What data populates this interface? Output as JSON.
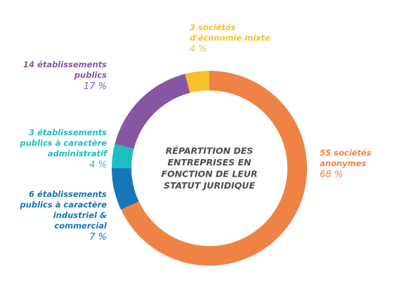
{
  "chart_data": {
    "type": "pie",
    "subtype": "donut",
    "title": "RÉPARTITION DES ENTREPRISES EN FONCTION DE LEUR STATUT JURIDIQUE",
    "title_lines": [
      "RÉPARTITION DES",
      "ENTREPRISES EN",
      "FONCTION DE LEUR",
      "STATUT JURIDIQUE"
    ],
    "slices": [
      {
        "count": 55,
        "value": 68,
        "pct_label": "68 %",
        "label_lines": [
          "55 sociétés",
          "anonymes"
        ],
        "color": "#EE8345"
      },
      {
        "count": 6,
        "value": 7,
        "pct_label": "7 %",
        "label_lines": [
          "6 établissements",
          "publics à caractère",
          "industriel &",
          "commercial"
        ],
        "color": "#1776B7"
      },
      {
        "count": 3,
        "value": 4,
        "pct_label": "4 %",
        "label_lines": [
          "3 établissements",
          "publics à caractère",
          "administratif"
        ],
        "color": "#1DBFC3"
      },
      {
        "count": 14,
        "value": 17,
        "pct_label": "17 %",
        "label_lines": [
          "14 établissements",
          "publics"
        ],
        "color": "#8656A5"
      },
      {
        "count": 3,
        "value": 4,
        "pct_label": "4 %",
        "label_lines": [
          "3 sociétés",
          "d'économie mixte"
        ],
        "color": "#F7C12E"
      }
    ]
  }
}
